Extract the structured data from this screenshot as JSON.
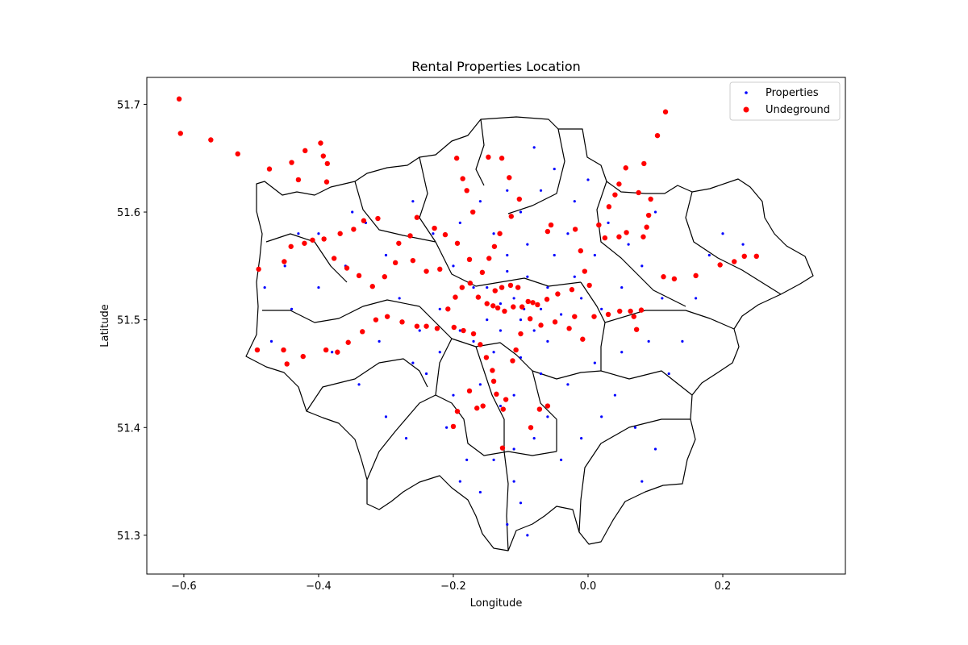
{
  "chart_data": {
    "type": "scatter",
    "title": "Rental Properties Location",
    "xlabel": "Longitude",
    "ylabel": "Latitude",
    "xlim": [
      -0.655,
      0.382
    ],
    "ylim": [
      51.264,
      51.725
    ],
    "xticks": [
      -0.6,
      -0.4,
      -0.2,
      0.0,
      0.2
    ],
    "xtick_labels": [
      "−0.6",
      "−0.4",
      "−0.2",
      "0.0",
      "0.2"
    ],
    "yticks": [
      51.3,
      51.4,
      51.5,
      51.6,
      51.7
    ],
    "ytick_labels": [
      "51.3",
      "51.4",
      "51.5",
      "51.6",
      "51.7"
    ],
    "grid": false,
    "legend_position": "top-right",
    "series": [
      {
        "name": "Properties",
        "color": "#0000ff",
        "marker": "small-dot",
        "points": [
          [
            -0.13,
            51.515
          ],
          [
            -0.11,
            51.52
          ],
          [
            -0.095,
            51.51
          ],
          [
            -0.15,
            51.5
          ],
          [
            -0.08,
            51.49
          ],
          [
            -0.12,
            51.545
          ],
          [
            -0.17,
            51.53
          ],
          [
            -0.19,
            51.49
          ],
          [
            -0.06,
            51.53
          ],
          [
            -0.04,
            51.505
          ],
          [
            -0.1,
            51.465
          ],
          [
            -0.14,
            51.47
          ],
          [
            -0.22,
            51.51
          ],
          [
            -0.2,
            51.55
          ],
          [
            -0.09,
            51.57
          ],
          [
            -0.05,
            51.56
          ],
          [
            -0.01,
            51.52
          ],
          [
            -0.16,
            51.44
          ],
          [
            -0.11,
            51.43
          ],
          [
            -0.07,
            51.45
          ],
          [
            -0.25,
            51.49
          ],
          [
            -0.28,
            51.52
          ],
          [
            -0.3,
            51.56
          ],
          [
            -0.33,
            51.59
          ],
          [
            -0.36,
            51.55
          ],
          [
            -0.4,
            51.53
          ],
          [
            -0.44,
            51.51
          ],
          [
            -0.47,
            51.48
          ],
          [
            -0.45,
            51.55
          ],
          [
            -0.38,
            51.47
          ],
          [
            -0.34,
            51.44
          ],
          [
            -0.3,
            51.41
          ],
          [
            -0.27,
            51.39
          ],
          [
            -0.21,
            51.4
          ],
          [
            -0.18,
            51.37
          ],
          [
            -0.19,
            51.35
          ],
          [
            -0.14,
            51.37
          ],
          [
            -0.11,
            51.38
          ],
          [
            -0.1,
            51.33
          ],
          [
            -0.12,
            51.31
          ],
          [
            -0.06,
            51.41
          ],
          [
            -0.03,
            51.44
          ],
          [
            0.01,
            51.46
          ],
          [
            0.04,
            51.43
          ],
          [
            0.07,
            51.4
          ],
          [
            0.1,
            51.38
          ],
          [
            0.12,
            51.45
          ],
          [
            0.14,
            51.48
          ],
          [
            0.16,
            51.52
          ],
          [
            0.18,
            51.56
          ],
          [
            0.2,
            51.58
          ],
          [
            0.23,
            51.57
          ],
          [
            0.1,
            51.6
          ],
          [
            0.06,
            51.57
          ],
          [
            0.03,
            51.59
          ],
          [
            0.0,
            51.63
          ],
          [
            -0.02,
            51.61
          ],
          [
            -0.05,
            51.64
          ],
          [
            -0.08,
            51.66
          ],
          [
            -0.12,
            51.62
          ],
          [
            -0.16,
            51.61
          ],
          [
            -0.19,
            51.59
          ],
          [
            -0.23,
            51.58
          ],
          [
            -0.26,
            51.61
          ],
          [
            -0.09,
            51.54
          ],
          [
            -0.07,
            51.51
          ],
          [
            -0.13,
            51.49
          ],
          [
            -0.17,
            51.48
          ],
          [
            -0.15,
            51.53
          ],
          [
            -0.1,
            51.5
          ],
          [
            -0.06,
            51.48
          ],
          [
            -0.02,
            51.54
          ],
          [
            0.02,
            51.51
          ],
          [
            0.05,
            51.53
          ],
          [
            0.08,
            51.55
          ],
          [
            -0.24,
            51.45
          ],
          [
            -0.2,
            51.43
          ],
          [
            -0.13,
            51.42
          ],
          [
            -0.08,
            51.39
          ],
          [
            -0.04,
            51.37
          ],
          [
            -0.16,
            51.34
          ],
          [
            -0.35,
            51.6
          ],
          [
            -0.4,
            51.58
          ],
          [
            -0.43,
            51.58
          ],
          [
            -0.48,
            51.53
          ],
          [
            -0.31,
            51.48
          ],
          [
            -0.26,
            51.46
          ],
          [
            -0.22,
            51.47
          ],
          [
            -0.12,
            51.56
          ],
          [
            -0.14,
            51.58
          ],
          [
            -0.1,
            51.6
          ],
          [
            -0.07,
            51.62
          ],
          [
            -0.03,
            51.58
          ],
          [
            0.01,
            51.56
          ],
          [
            0.11,
            51.52
          ],
          [
            0.09,
            51.48
          ],
          [
            0.05,
            51.47
          ],
          [
            0.02,
            51.41
          ],
          [
            -0.01,
            51.39
          ],
          [
            0.08,
            51.35
          ],
          [
            -0.11,
            51.35
          ],
          [
            -0.09,
            51.3
          ]
        ]
      },
      {
        "name": "Undeground",
        "color": "#ff0000",
        "marker": "dot",
        "points": [
          [
            -0.607,
            51.705
          ],
          [
            -0.605,
            51.673
          ],
          [
            -0.56,
            51.667
          ],
          [
            -0.52,
            51.654
          ],
          [
            -0.473,
            51.64
          ],
          [
            -0.44,
            51.646
          ],
          [
            -0.42,
            51.657
          ],
          [
            -0.397,
            51.664
          ],
          [
            -0.393,
            51.652
          ],
          [
            -0.387,
            51.645
          ],
          [
            -0.43,
            51.63
          ],
          [
            -0.388,
            51.628
          ],
          [
            0.115,
            51.693
          ],
          [
            0.103,
            51.671
          ],
          [
            0.083,
            51.645
          ],
          [
            0.056,
            51.641
          ],
          [
            0.046,
            51.626
          ],
          [
            0.04,
            51.616
          ],
          [
            0.075,
            51.618
          ],
          [
            0.093,
            51.612
          ],
          [
            0.09,
            51.597
          ],
          [
            0.087,
            51.586
          ],
          [
            0.082,
            51.577
          ],
          [
            0.057,
            51.581
          ],
          [
            0.046,
            51.577
          ],
          [
            0.025,
            51.576
          ],
          [
            0.112,
            51.54
          ],
          [
            0.128,
            51.538
          ],
          [
            0.16,
            51.541
          ],
          [
            0.196,
            51.551
          ],
          [
            0.217,
            51.554
          ],
          [
            0.232,
            51.559
          ],
          [
            0.25,
            51.559
          ],
          [
            -0.489,
            51.547
          ],
          [
            -0.451,
            51.554
          ],
          [
            -0.441,
            51.568
          ],
          [
            -0.421,
            51.571
          ],
          [
            -0.409,
            51.574
          ],
          [
            -0.392,
            51.575
          ],
          [
            -0.368,
            51.58
          ],
          [
            -0.348,
            51.584
          ],
          [
            -0.333,
            51.592
          ],
          [
            -0.312,
            51.594
          ],
          [
            -0.281,
            51.571
          ],
          [
            -0.264,
            51.578
          ],
          [
            -0.254,
            51.595
          ],
          [
            -0.491,
            51.472
          ],
          [
            -0.452,
            51.472
          ],
          [
            -0.447,
            51.459
          ],
          [
            -0.423,
            51.466
          ],
          [
            -0.389,
            51.472
          ],
          [
            -0.372,
            51.47
          ],
          [
            -0.356,
            51.479
          ],
          [
            -0.335,
            51.489
          ],
          [
            -0.315,
            51.5
          ],
          [
            -0.298,
            51.503
          ],
          [
            -0.276,
            51.498
          ],
          [
            -0.254,
            51.494
          ],
          [
            -0.24,
            51.494
          ],
          [
            -0.224,
            51.492
          ],
          [
            -0.208,
            51.51
          ],
          [
            -0.197,
            51.521
          ],
          [
            -0.187,
            51.53
          ],
          [
            -0.175,
            51.534
          ],
          [
            -0.163,
            51.521
          ],
          [
            -0.15,
            51.515
          ],
          [
            -0.141,
            51.513
          ],
          [
            -0.134,
            51.511
          ],
          [
            -0.124,
            51.508
          ],
          [
            -0.111,
            51.512
          ],
          [
            -0.098,
            51.512
          ],
          [
            -0.089,
            51.517
          ],
          [
            -0.082,
            51.516
          ],
          [
            -0.075,
            51.514
          ],
          [
            -0.061,
            51.519
          ],
          [
            -0.045,
            51.524
          ],
          [
            -0.024,
            51.528
          ],
          [
            0.002,
            51.532
          ],
          [
            -0.138,
            51.527
          ],
          [
            -0.128,
            51.53
          ],
          [
            -0.115,
            51.532
          ],
          [
            -0.104,
            51.53
          ],
          [
            -0.157,
            51.544
          ],
          [
            -0.176,
            51.556
          ],
          [
            -0.194,
            51.571
          ],
          [
            -0.212,
            51.579
          ],
          [
            -0.228,
            51.585
          ],
          [
            -0.147,
            51.557
          ],
          [
            -0.139,
            51.568
          ],
          [
            -0.131,
            51.58
          ],
          [
            -0.114,
            51.596
          ],
          [
            -0.102,
            51.612
          ],
          [
            -0.117,
            51.632
          ],
          [
            -0.128,
            51.65
          ],
          [
            -0.148,
            51.651
          ],
          [
            -0.195,
            51.65
          ],
          [
            -0.186,
            51.631
          ],
          [
            -0.18,
            51.62
          ],
          [
            -0.171,
            51.6
          ],
          [
            -0.055,
            51.588
          ],
          [
            -0.06,
            51.582
          ],
          [
            -0.019,
            51.584
          ],
          [
            -0.199,
            51.493
          ],
          [
            -0.185,
            51.49
          ],
          [
            -0.17,
            51.487
          ],
          [
            -0.16,
            51.477
          ],
          [
            -0.151,
            51.465
          ],
          [
            -0.142,
            51.453
          ],
          [
            -0.14,
            51.443
          ],
          [
            -0.136,
            51.431
          ],
          [
            -0.126,
            51.417
          ],
          [
            -0.122,
            51.426
          ],
          [
            -0.156,
            51.42
          ],
          [
            -0.165,
            51.418
          ],
          [
            -0.176,
            51.434
          ],
          [
            -0.194,
            51.415
          ],
          [
            -0.2,
            51.401
          ],
          [
            -0.107,
            51.472
          ],
          [
            -0.112,
            51.462
          ],
          [
            -0.1,
            51.487
          ],
          [
            -0.086,
            51.501
          ],
          [
            -0.07,
            51.495
          ],
          [
            -0.049,
            51.498
          ],
          [
            -0.02,
            51.503
          ],
          [
            0.009,
            51.503
          ],
          [
            0.03,
            51.505
          ],
          [
            0.047,
            51.508
          ],
          [
            0.063,
            51.508
          ],
          [
            0.079,
            51.509
          ],
          [
            0.072,
            51.491
          ],
          [
            0.068,
            51.503
          ],
          [
            -0.028,
            51.492
          ],
          [
            -0.008,
            51.482
          ],
          [
            -0.06,
            51.42
          ],
          [
            -0.072,
            51.417
          ],
          [
            -0.085,
            51.4
          ],
          [
            -0.127,
            51.381
          ],
          [
            -0.011,
            51.564
          ],
          [
            0.016,
            51.588
          ],
          [
            0.031,
            51.605
          ],
          [
            -0.005,
            51.545
          ],
          [
            -0.22,
            51.547
          ],
          [
            -0.24,
            51.545
          ],
          [
            -0.26,
            51.555
          ],
          [
            -0.286,
            51.553
          ],
          [
            -0.302,
            51.54
          ],
          [
            -0.32,
            51.531
          ],
          [
            -0.34,
            51.541
          ],
          [
            -0.358,
            51.548
          ],
          [
            -0.377,
            51.557
          ]
        ]
      }
    ],
    "boroughs": "London borough boundaries drawn in black"
  }
}
